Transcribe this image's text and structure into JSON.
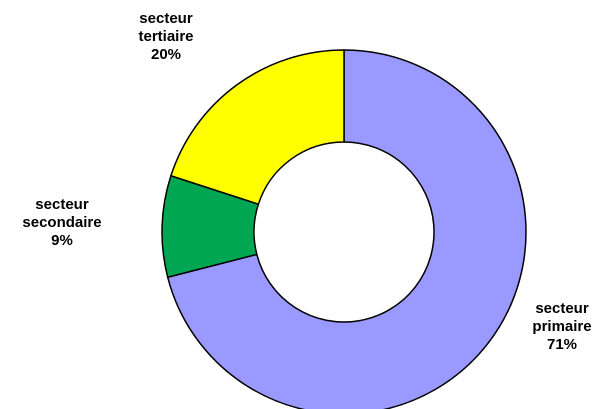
{
  "chart_data": {
    "type": "donut",
    "categories": [
      "secteur primaire",
      "secteur secondaire",
      "secteur tertiaire"
    ],
    "values": [
      71,
      9,
      20
    ],
    "value_labels": [
      "71%",
      "9%",
      "20%"
    ],
    "colors": [
      "#9999ff",
      "#00a651",
      "#ffff00"
    ]
  }
}
